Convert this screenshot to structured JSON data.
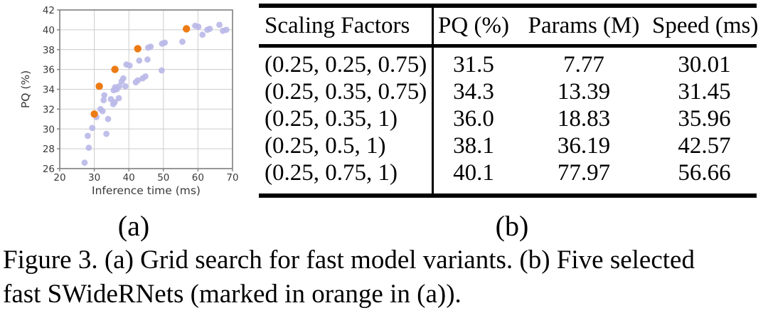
{
  "figure": {
    "panel_a_label": "(a)",
    "panel_b_label": "(b)",
    "caption_line1": "Figure 3. (a) Grid search for fast model variants. (b) Five selected",
    "caption_line2": "fast SWideRNets (marked in orange in (a))."
  },
  "chart_data": {
    "type": "scatter",
    "title": "",
    "xlabel": "Inference time (ms)",
    "ylabel": "PQ (%)",
    "xlim": [
      20,
      70
    ],
    "ylim": [
      26,
      42
    ],
    "xticks": [
      20,
      30,
      40,
      50,
      60,
      70
    ],
    "yticks": [
      26,
      28,
      30,
      32,
      34,
      36,
      38,
      40,
      42
    ],
    "grid": true,
    "legend": "none",
    "series": [
      {
        "name": "grid-search-candidates",
        "color": "#b9b8e8",
        "marker_radius": 4.4,
        "opacity": 0.9,
        "points": [
          [
            27.2,
            26.6
          ],
          [
            28.4,
            28.1
          ],
          [
            28.1,
            29.3
          ],
          [
            29.4,
            30.1
          ],
          [
            30.6,
            31.2
          ],
          [
            33.5,
            29.5
          ],
          [
            34.0,
            31.0
          ],
          [
            31.8,
            32.0
          ],
          [
            32.4,
            31.8
          ],
          [
            32.7,
            32.9
          ],
          [
            32.9,
            33.4
          ],
          [
            34.8,
            33.0
          ],
          [
            35.5,
            32.5
          ],
          [
            35.9,
            32.7
          ],
          [
            37.1,
            33.1
          ],
          [
            35.6,
            33.9
          ],
          [
            36.0,
            34.2
          ],
          [
            36.5,
            34.0
          ],
          [
            37.2,
            34.3
          ],
          [
            37.9,
            34.8
          ],
          [
            39.0,
            34.3
          ],
          [
            38.4,
            35.1
          ],
          [
            39.3,
            36.5
          ],
          [
            40.2,
            36.4
          ],
          [
            42.0,
            34.7
          ],
          [
            42.6,
            34.9
          ],
          [
            44.0,
            35.1
          ],
          [
            44.8,
            35.3
          ],
          [
            43.0,
            36.9
          ],
          [
            45.4,
            37.0
          ],
          [
            45.6,
            38.2
          ],
          [
            46.3,
            38.3
          ],
          [
            49.5,
            35.9
          ],
          [
            49.6,
            38.6
          ],
          [
            50.4,
            38.7
          ],
          [
            55.5,
            38.8
          ],
          [
            59.2,
            40.4
          ],
          [
            60.1,
            40.3
          ],
          [
            61.3,
            39.5
          ],
          [
            62.7,
            40.0
          ],
          [
            63.4,
            40.1
          ],
          [
            66.2,
            40.5
          ],
          [
            67.2,
            39.9
          ],
          [
            68.2,
            40.0
          ]
        ]
      },
      {
        "name": "selected-fast-swidernets",
        "color": "#ec7b13",
        "marker_radius": 5.2,
        "opacity": 1,
        "points": [
          [
            30.01,
            31.5
          ],
          [
            31.45,
            34.3
          ],
          [
            35.96,
            36.0
          ],
          [
            42.57,
            38.1
          ],
          [
            56.66,
            40.1
          ]
        ]
      }
    ]
  },
  "table": {
    "headers": [
      "Scaling Factors",
      "PQ (%)",
      "Params (M)",
      "Speed (ms)"
    ],
    "rows": [
      [
        "(0.25, 0.25, 0.75)",
        "31.5",
        "7.77",
        "30.01"
      ],
      [
        "(0.25, 0.35, 0.75)",
        "34.3",
        "13.39",
        "31.45"
      ],
      [
        "(0.25, 0.35, 1)",
        "36.0",
        "18.83",
        "35.96"
      ],
      [
        "(0.25, 0.5, 1)",
        "38.1",
        "36.19",
        "42.57"
      ],
      [
        "(0.25, 0.75, 1)",
        "40.1",
        "77.97",
        "56.66"
      ]
    ]
  },
  "colors": {
    "highlight_orange": "#ec7b13",
    "scatter_lavender": "#b9b8e8",
    "grid_gray": "#cccccc",
    "frame_gray": "#7f7f7f",
    "rule_black": "#000000"
  }
}
